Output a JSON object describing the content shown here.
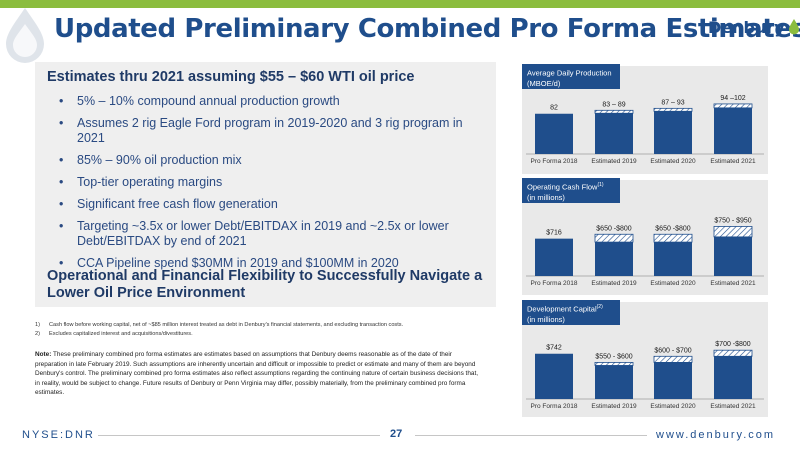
{
  "slide": {
    "title": "Updated Preliminary Combined Pro Forma Estimates",
    "logo_text": "Denbury"
  },
  "estimates": {
    "heading": "Estimates thru 2021 assuming $55 – $60 WTI oil price",
    "bullets": [
      "5% – 10% compound annual production growth",
      "Assumes 2 rig Eagle Ford program in 2019-2020 and 3 rig program in 2021",
      "85% – 90% oil production mix",
      "Top-tier operating margins",
      "Significant free cash flow generation",
      "Targeting ~3.5x or lower Debt/EBITDAX in 2019 and ~2.5x or lower Debt/EBITDAX by end of 2021",
      "CCA Pipeline spend $30MM in 2019 and $100MM in 2020"
    ],
    "flexibility_heading": "Operational and Financial Flexibility to Successfully Navigate a Lower Oil Price Environment"
  },
  "footnotes": [
    {
      "num": "1)",
      "text": "Cash flow before working capital, net of ~$85 million interest treated as debt in Denbury's financial statements, and excluding transaction costs."
    },
    {
      "num": "2)",
      "text": "Excludes capitalized interest and acquisitions/divestitures."
    }
  ],
  "note": {
    "label": "Note:",
    "text": " These preliminary combined pro forma estimates are estimates based on assumptions that Denbury deems reasonable as of the date of their preparation in late February 2019.  Such assumptions are inherently uncertain and difficult or impossible to predict or estimate and many of them are beyond Denbury's control.  The preliminary combined pro forma estimates also reflect assumptions regarding the continuing nature of certain business decisions that, in reality, would be subject to change.  Future results of Denbury or Penn Virginia may differ, possibly materially, from the preliminary combined pro forma estimates."
  },
  "footer": {
    "left": "NYSE:DNR",
    "page": "27",
    "right": "www.denbury.com"
  },
  "colors": {
    "navy": "#1f4e8c",
    "green": "#8bbd3e",
    "panel": "#e9e9e9"
  },
  "chart_data": [
    {
      "type": "bar",
      "title": "Average Daily Production",
      "title_line2": "(MBOE/d)",
      "title_sup": "",
      "categories": [
        "Pro Forma 2018",
        "Estimated 2019",
        "Estimated 2020",
        "Estimated 2021"
      ],
      "low": [
        82,
        83,
        87,
        94
      ],
      "high": [
        82,
        89,
        93,
        102
      ],
      "labels": [
        "82",
        "83 – 89",
        "87 – 93",
        "94 –102"
      ],
      "ylim": [
        0,
        110
      ]
    },
    {
      "type": "bar",
      "title": "Operating Cash Flow",
      "title_line2": "(in millions)",
      "title_sup": "(1)",
      "categories": [
        "Pro Forma 2018",
        "Estimated 2019",
        "Estimated 2020",
        "Estimated 2021"
      ],
      "low": [
        716,
        650,
        650,
        750
      ],
      "high": [
        716,
        800,
        800,
        950
      ],
      "labels": [
        "$716",
        "$650 -$800",
        "$650 -$800",
        "$750 - $950"
      ],
      "ylim": [
        0,
        1150
      ]
    },
    {
      "type": "bar",
      "title": "Development Capital",
      "title_line2": "(in millions)",
      "title_sup": "(2)",
      "categories": [
        "Pro Forma 2018",
        "Estimated 2019",
        "Estimated 2020",
        "Estimated 2021"
      ],
      "low": [
        742,
        550,
        600,
        700
      ],
      "high": [
        742,
        600,
        700,
        800
      ],
      "labels": [
        "$742",
        "$550 - $600",
        "$600 - $700",
        "$700 -$800"
      ],
      "ylim": [
        0,
        1000
      ]
    }
  ]
}
